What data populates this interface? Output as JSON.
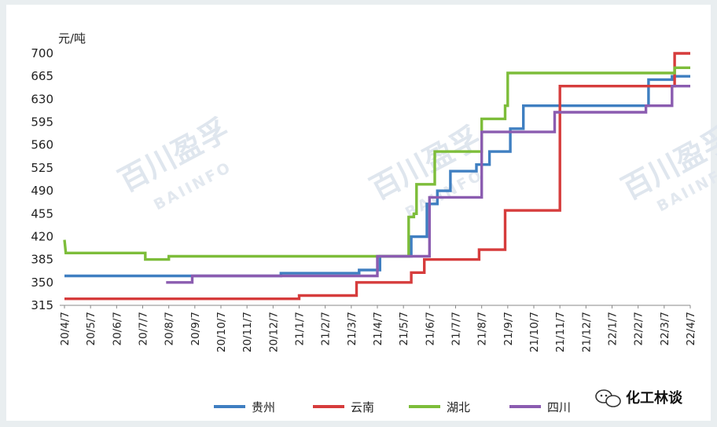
{
  "chart_data": {
    "type": "line",
    "ylabel": "元/吨",
    "ylim": [
      315,
      700
    ],
    "yticks": [
      315,
      350,
      385,
      420,
      455,
      490,
      525,
      560,
      595,
      630,
      665,
      700
    ],
    "x_tick_labels": [
      "20/4/7",
      "20/5/7",
      "20/6/7",
      "20/7/7",
      "20/8/7",
      "20/9/7",
      "20/10/7",
      "20/11/7",
      "20/12/7",
      "21/1/7",
      "21/2/7",
      "21/3/7",
      "21/4/7",
      "21/5/7",
      "21/6/7",
      "21/7/7",
      "21/8/7",
      "21/9/7",
      "21/10/7",
      "21/11/7",
      "21/12/7",
      "22/1/7",
      "22/2/7",
      "22/3/7",
      "22/4/7"
    ],
    "x_range_months": [
      0,
      24
    ],
    "legend_position": "bottom",
    "grid": false,
    "series": [
      {
        "name": "贵州",
        "color": "#3f7fc1",
        "points": [
          [
            0,
            360
          ],
          [
            8.3,
            360
          ],
          [
            8.3,
            364
          ],
          [
            11.3,
            364
          ],
          [
            11.3,
            369
          ],
          [
            12.1,
            369
          ],
          [
            12.1,
            390
          ],
          [
            13.3,
            390
          ],
          [
            13.3,
            420
          ],
          [
            13.9,
            420
          ],
          [
            13.9,
            470
          ],
          [
            14.3,
            470
          ],
          [
            14.3,
            490
          ],
          [
            14.8,
            490
          ],
          [
            14.8,
            520
          ],
          [
            15.8,
            520
          ],
          [
            15.8,
            530
          ],
          [
            16.3,
            530
          ],
          [
            16.3,
            550
          ],
          [
            17.1,
            550
          ],
          [
            17.1,
            585
          ],
          [
            17.6,
            585
          ],
          [
            17.6,
            620
          ],
          [
            22.4,
            620
          ],
          [
            22.4,
            660
          ],
          [
            23.3,
            660
          ],
          [
            23.3,
            665
          ],
          [
            24,
            665
          ]
        ]
      },
      {
        "name": "云南",
        "color": "#d63c3c",
        "points": [
          [
            0,
            325
          ],
          [
            9.0,
            325
          ],
          [
            9.0,
            330
          ],
          [
            11.2,
            330
          ],
          [
            11.2,
            350
          ],
          [
            13.3,
            350
          ],
          [
            13.3,
            365
          ],
          [
            13.8,
            365
          ],
          [
            13.8,
            385
          ],
          [
            15.9,
            385
          ],
          [
            15.9,
            400
          ],
          [
            16.9,
            400
          ],
          [
            16.9,
            460
          ],
          [
            19.0,
            460
          ],
          [
            19.0,
            650
          ],
          [
            23.4,
            650
          ],
          [
            23.4,
            700
          ],
          [
            24,
            700
          ]
        ]
      },
      {
        "name": "湖北",
        "color": "#7dbd3a",
        "points": [
          [
            0,
            415
          ],
          [
            0.05,
            395
          ],
          [
            3.1,
            395
          ],
          [
            3.1,
            385
          ],
          [
            4.0,
            385
          ],
          [
            4.0,
            390
          ],
          [
            13.2,
            390
          ],
          [
            13.2,
            450
          ],
          [
            13.4,
            450
          ],
          [
            13.4,
            455
          ],
          [
            13.5,
            455
          ],
          [
            13.5,
            500
          ],
          [
            14.2,
            500
          ],
          [
            14.2,
            550
          ],
          [
            16.0,
            550
          ],
          [
            16.0,
            600
          ],
          [
            16.9,
            600
          ],
          [
            16.9,
            620
          ],
          [
            17.0,
            620
          ],
          [
            17.0,
            670
          ],
          [
            23.4,
            670
          ],
          [
            23.4,
            678
          ],
          [
            24,
            678
          ]
        ]
      },
      {
        "name": "四川",
        "color": "#8b5cb0",
        "points": [
          [
            3.9,
            350
          ],
          [
            4.9,
            350
          ],
          [
            4.9,
            360
          ],
          [
            12.0,
            360
          ],
          [
            12.0,
            390
          ],
          [
            14.0,
            390
          ],
          [
            14.0,
            480
          ],
          [
            16.0,
            480
          ],
          [
            16.0,
            580
          ],
          [
            18.8,
            580
          ],
          [
            18.8,
            610
          ],
          [
            22.3,
            610
          ],
          [
            22.3,
            620
          ],
          [
            23.3,
            620
          ],
          [
            23.3,
            650
          ],
          [
            24,
            650
          ]
        ]
      }
    ]
  },
  "watermarks": {
    "brand_cn": "百川盈孚",
    "brand_en": "BAIINFO"
  },
  "credit": {
    "icon": "wechat-icon",
    "text": "化工林谈"
  }
}
